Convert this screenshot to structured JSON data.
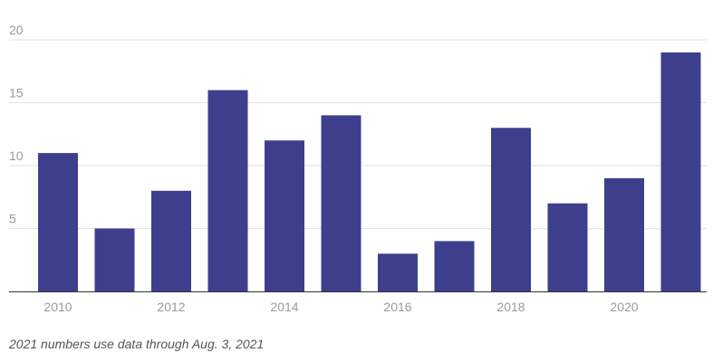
{
  "chart_data": {
    "type": "bar",
    "title": "",
    "xlabel": "",
    "ylabel": "",
    "categories": [
      "2010",
      "2011",
      "2012",
      "2013",
      "2014",
      "2015",
      "2016",
      "2017",
      "2018",
      "2019",
      "2020",
      "2021"
    ],
    "x_tick_labels": [
      "2010",
      "2012",
      "2014",
      "2016",
      "2018",
      "2020"
    ],
    "y_tick_labels": [
      "5",
      "10",
      "15",
      "20"
    ],
    "values": [
      11,
      5,
      8,
      16,
      12,
      14,
      3,
      4,
      13,
      7,
      9,
      19
    ],
    "ylim": [
      0,
      20
    ],
    "grid": true,
    "legend": "none",
    "bar_color": "#3d3f8d"
  },
  "footnote": "2021 numbers use data through Aug. 3, 2021"
}
